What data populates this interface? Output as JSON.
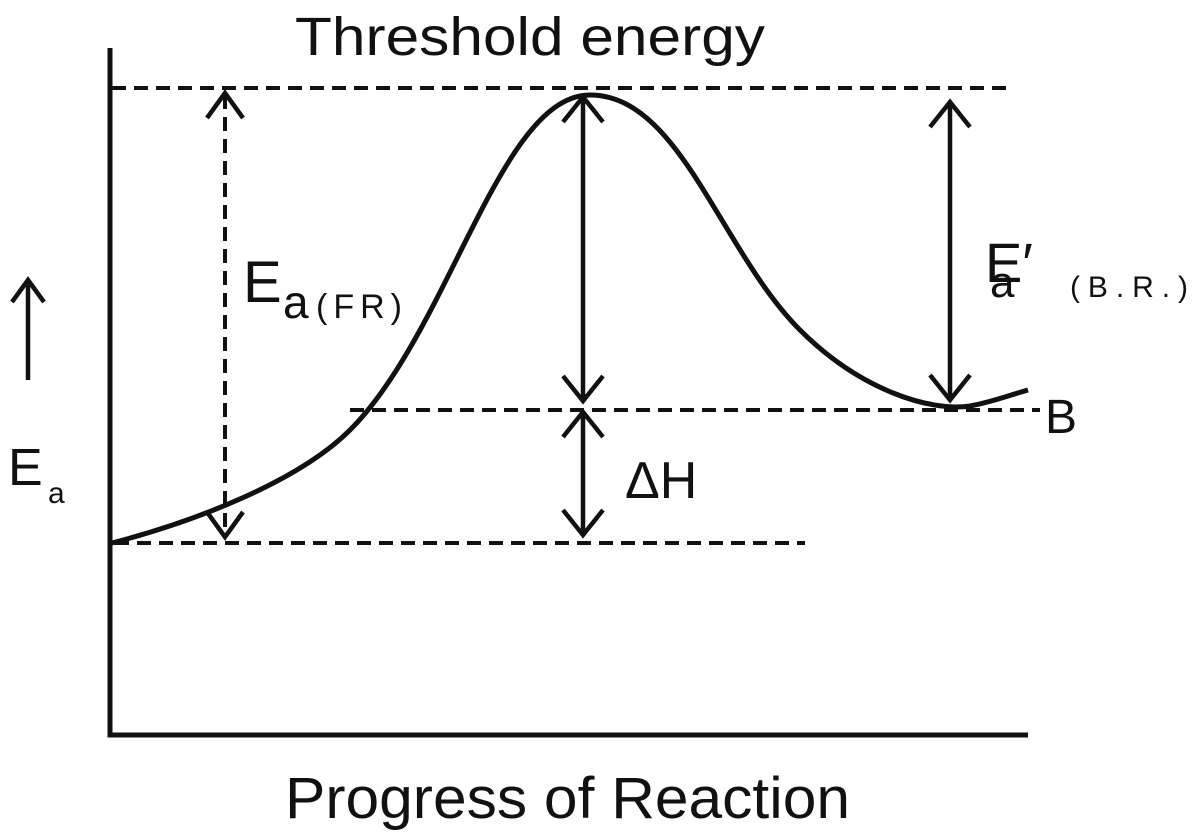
{
  "title": "Threshold energy",
  "x_axis_label": "Progress of Reaction",
  "y_axis_label": {
    "main": "E",
    "sub": "a"
  },
  "forward_activation": {
    "main": "E",
    "sub": "a",
    "note": "(FR)"
  },
  "backward_activation": {
    "main": "E′",
    "sub": "a",
    "note": "(B.R.)"
  },
  "enthalpy_change": "ΔH",
  "product_label": "B"
}
